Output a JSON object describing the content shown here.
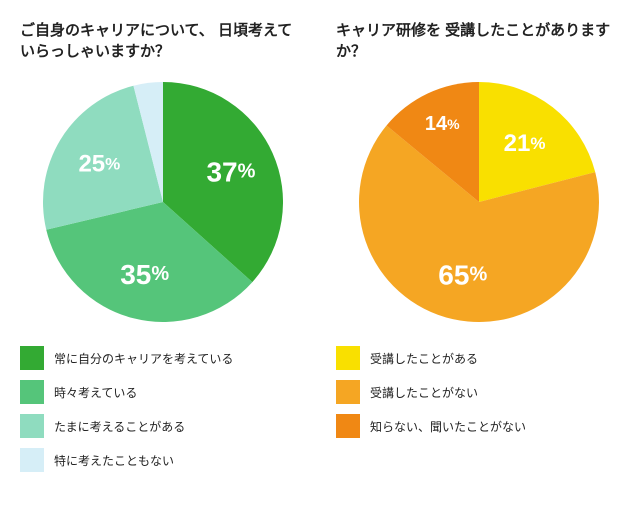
{
  "chart1": {
    "type": "pie",
    "title": "ご自身のキャリアについて、\n日頃考えていらっしゃいますか？",
    "title_fontsize": 15,
    "radius": 120,
    "slices": [
      {
        "value": 37,
        "label": "37%",
        "color": "#33aa33",
        "label_color": "#ffffff",
        "label_fontsize": 28,
        "legend": "常に自分のキャリアを考えている"
      },
      {
        "value": 35,
        "label": "35%",
        "color": "#55c57a",
        "label_color": "#ffffff",
        "label_fontsize": 28,
        "legend": "時々考えている"
      },
      {
        "value": 25,
        "label": "25%",
        "color": "#8fdcbf",
        "label_color": "#ffffff",
        "label_fontsize": 24,
        "legend": "たまに考えることがある"
      },
      {
        "value": 4,
        "label": "4%",
        "color": "#d6eef7",
        "label_color": "#6b6b6b",
        "label_fontsize": 18,
        "label_outside": true,
        "legend": "特に考えたこともない"
      }
    ],
    "legend_swatch_size": 24,
    "legend_fontsize": 12,
    "background_color": "#ffffff"
  },
  "chart2": {
    "type": "pie",
    "title": "キャリア研修を\n受講したことがありますか？",
    "title_fontsize": 15,
    "radius": 120,
    "slices": [
      {
        "value": 21,
        "label": "21%",
        "color": "#f9e000",
        "label_color": "#ffffff",
        "label_fontsize": 24,
        "legend": "受講したことがある"
      },
      {
        "value": 65,
        "label": "65%",
        "color": "#f5a623",
        "label_color": "#ffffff",
        "label_fontsize": 28,
        "legend": "受講したことがない"
      },
      {
        "value": 14,
        "label": "14%",
        "color": "#f08814",
        "label_color": "#ffffff",
        "label_fontsize": 20,
        "legend": "知らない、聞いたことがない"
      }
    ],
    "legend_swatch_size": 24,
    "legend_fontsize": 12,
    "background_color": "#ffffff"
  }
}
